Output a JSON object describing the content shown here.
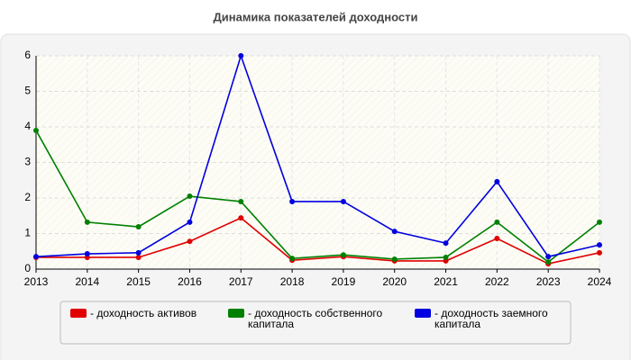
{
  "chart_data": {
    "type": "line",
    "title": "Динамика показателей доходности",
    "categories": [
      "2013",
      "2014",
      "2015",
      "2016",
      "2017",
      "2018",
      "2019",
      "2020",
      "2021",
      "2022",
      "2023",
      "2024"
    ],
    "series": [
      {
        "name": "- доходность активов",
        "color": "#e00000",
        "values": [
          0.33,
          0.33,
          0.33,
          0.78,
          1.44,
          0.25,
          0.35,
          0.23,
          0.23,
          0.86,
          0.15,
          0.46
        ]
      },
      {
        "name": "- доходность собственного капитала",
        "color": "#008000",
        "values": [
          3.9,
          1.32,
          1.19,
          2.05,
          1.9,
          0.3,
          0.4,
          0.28,
          0.33,
          1.32,
          0.2,
          1.32
        ]
      },
      {
        "name": "- доходность заемного капитала",
        "color": "#0000e0",
        "values": [
          0.35,
          0.43,
          0.46,
          1.32,
          6,
          1.9,
          1.9,
          1.06,
          0.73,
          2.46,
          0.35,
          0.68
        ]
      }
    ],
    "ylim": [
      0,
      6
    ],
    "yticks": [
      0,
      1,
      2,
      3,
      4,
      5,
      6
    ],
    "grid": true
  }
}
